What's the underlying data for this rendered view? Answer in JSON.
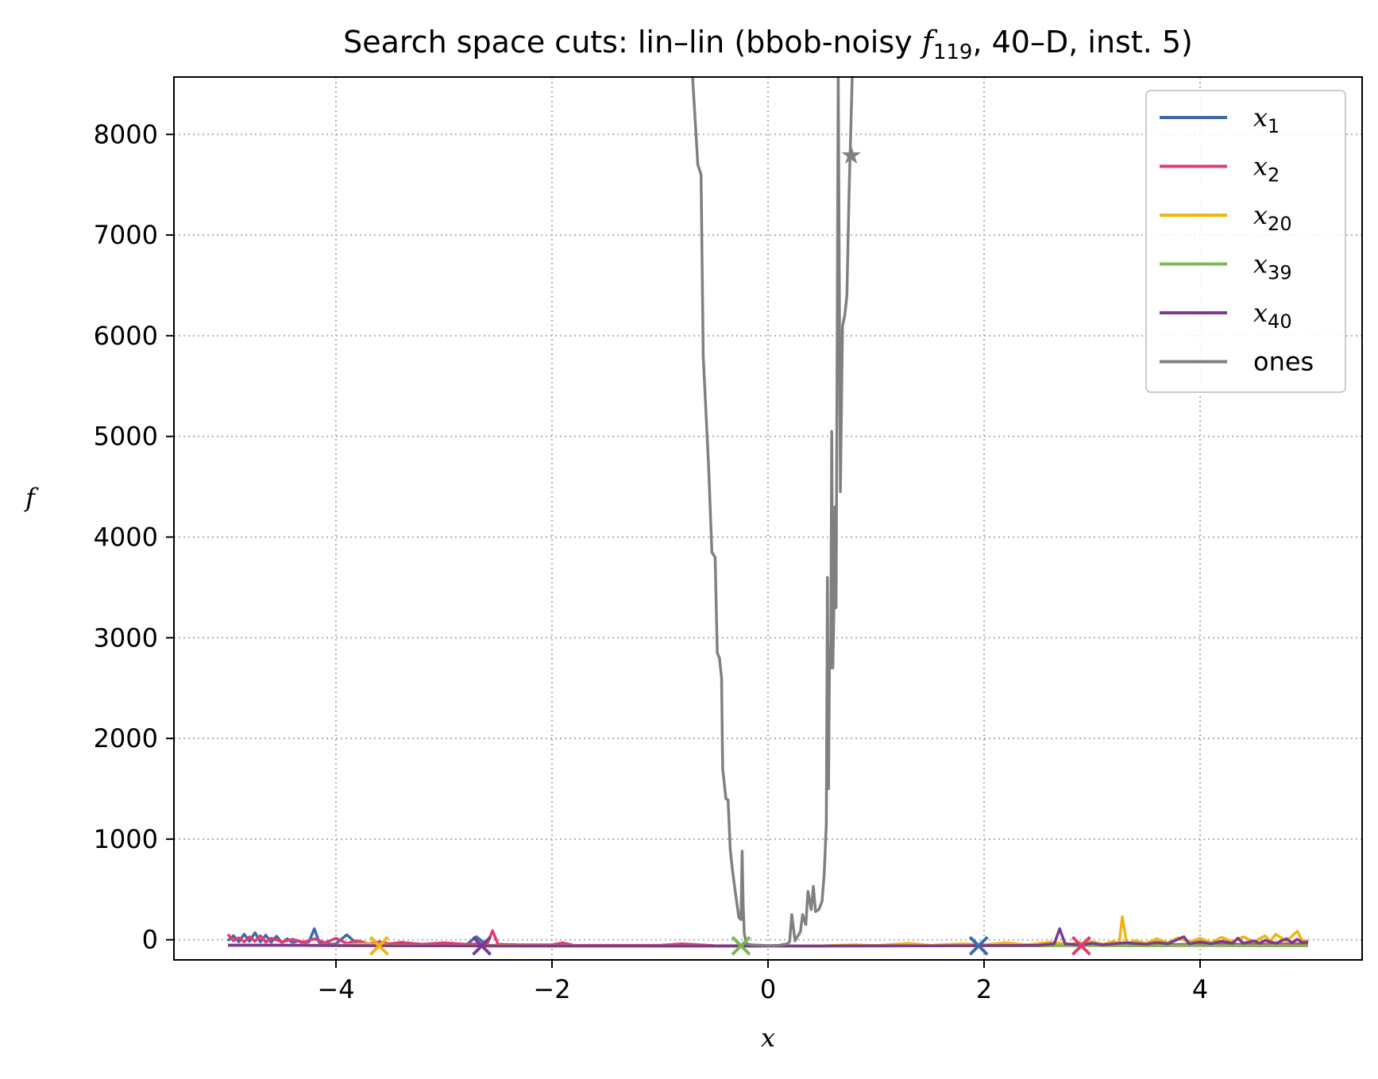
{
  "chart_data": {
    "type": "line",
    "title": {
      "prefix": "Search space cuts: lin–lin (bbob-noisy ",
      "f_symbol": "f",
      "f_sub": "119",
      "suffix": ", 40–D, inst. 5)"
    },
    "xlabel": "x",
    "ylabel": "f",
    "xlim": [
      -5.5,
      5.5
    ],
    "ylim": [
      -200,
      8570
    ],
    "xticks": [
      -4,
      -2,
      0,
      2,
      4
    ],
    "xtick_labels": [
      "−4",
      "−2",
      "0",
      "2",
      "4"
    ],
    "yticks": [
      0,
      1000,
      2000,
      3000,
      4000,
      5000,
      6000,
      7000,
      8000
    ],
    "ytick_labels": [
      "0",
      "1000",
      "2000",
      "3000",
      "4000",
      "5000",
      "6000",
      "7000",
      "8000"
    ],
    "grid": true,
    "legend_position": "upper right",
    "series": [
      {
        "name": "x",
        "sub": "1",
        "color": "#3f6aaa",
        "points": [
          [
            -5.0,
            -10
          ],
          [
            -4.95,
            40
          ],
          [
            -4.9,
            -20
          ],
          [
            -4.85,
            55
          ],
          [
            -4.8,
            -15
          ],
          [
            -4.75,
            70
          ],
          [
            -4.7,
            -20
          ],
          [
            -4.65,
            45
          ],
          [
            -4.6,
            -25
          ],
          [
            -4.55,
            35
          ],
          [
            -4.5,
            -30
          ],
          [
            -4.45,
            10
          ],
          [
            -4.4,
            -30
          ],
          [
            -4.35,
            -10
          ],
          [
            -4.3,
            -35
          ],
          [
            -4.25,
            -20
          ],
          [
            -4.2,
            110
          ],
          [
            -4.15,
            -40
          ],
          [
            -4.1,
            -30
          ],
          [
            -4.05,
            -45
          ],
          [
            -4.0,
            -40
          ],
          [
            -3.9,
            50
          ],
          [
            -3.8,
            -45
          ],
          [
            -3.6,
            -50
          ],
          [
            -3.4,
            -45
          ],
          [
            -3.2,
            -55
          ],
          [
            -3.0,
            -50
          ],
          [
            -2.8,
            -55
          ],
          [
            -2.7,
            30
          ],
          [
            -2.6,
            -55
          ],
          [
            -2.4,
            -55
          ],
          [
            -2.0,
            -60
          ],
          [
            -1.5,
            -60
          ],
          [
            -1.0,
            -60
          ],
          [
            -0.5,
            -62
          ],
          [
            0.0,
            -62
          ],
          [
            0.5,
            -62
          ],
          [
            1.0,
            -60
          ],
          [
            1.5,
            -60
          ],
          [
            2.0,
            -58
          ],
          [
            2.5,
            -55
          ],
          [
            3.0,
            -50
          ],
          [
            3.5,
            -50
          ],
          [
            4.0,
            -45
          ],
          [
            4.5,
            -45
          ],
          [
            5.0,
            -40
          ]
        ],
        "optimum": [
          1.95,
          -60
        ]
      },
      {
        "name": "x",
        "sub": "2",
        "color": "#e03c70",
        "points": [
          [
            -5.0,
            55
          ],
          [
            -4.95,
            -10
          ],
          [
            -4.9,
            20
          ],
          [
            -4.85,
            -20
          ],
          [
            -4.8,
            30
          ],
          [
            -4.75,
            -15
          ],
          [
            -4.7,
            40
          ],
          [
            -4.65,
            -25
          ],
          [
            -4.6,
            15
          ],
          [
            -4.5,
            -20
          ],
          [
            -4.4,
            5
          ],
          [
            -4.3,
            -25
          ],
          [
            -4.2,
            10
          ],
          [
            -4.1,
            -30
          ],
          [
            -4.0,
            15
          ],
          [
            -3.9,
            -35
          ],
          [
            -3.8,
            -10
          ],
          [
            -3.7,
            -40
          ],
          [
            -3.6,
            -20
          ],
          [
            -3.5,
            -40
          ],
          [
            -3.4,
            -25
          ],
          [
            -3.2,
            -45
          ],
          [
            -3.0,
            -30
          ],
          [
            -2.8,
            -45
          ],
          [
            -2.6,
            -40
          ],
          [
            -2.55,
            90
          ],
          [
            -2.5,
            -45
          ],
          [
            -2.3,
            -50
          ],
          [
            -2.0,
            -50
          ],
          [
            -1.9,
            -30
          ],
          [
            -1.8,
            -55
          ],
          [
            -1.5,
            -55
          ],
          [
            -1.0,
            -55
          ],
          [
            -0.8,
            -40
          ],
          [
            -0.5,
            -58
          ],
          [
            0.0,
            -60
          ],
          [
            0.5,
            -60
          ],
          [
            1.0,
            -58
          ],
          [
            1.5,
            -58
          ],
          [
            2.0,
            -56
          ],
          [
            2.5,
            -55
          ],
          [
            3.0,
            -52
          ],
          [
            3.5,
            -50
          ],
          [
            4.0,
            -48
          ],
          [
            4.5,
            -45
          ],
          [
            5.0,
            -45
          ]
        ],
        "optimum": [
          2.9,
          -60
        ]
      },
      {
        "name": "x",
        "sub": "20",
        "color": "#f0b512",
        "points": [
          [
            -5.0,
            -50
          ],
          [
            -4.5,
            -50
          ],
          [
            -4.0,
            -55
          ],
          [
            -3.7,
            -40
          ],
          [
            -3.5,
            -55
          ],
          [
            -3.0,
            -58
          ],
          [
            -2.5,
            -58
          ],
          [
            -2.0,
            -60
          ],
          [
            -1.5,
            -60
          ],
          [
            -1.0,
            -62
          ],
          [
            -0.5,
            -62
          ],
          [
            0.0,
            -62
          ],
          [
            0.5,
            -60
          ],
          [
            0.8,
            -50
          ],
          [
            1.0,
            -58
          ],
          [
            1.3,
            -35
          ],
          [
            1.5,
            -55
          ],
          [
            1.8,
            -40
          ],
          [
            2.0,
            -50
          ],
          [
            2.2,
            -30
          ],
          [
            2.4,
            -50
          ],
          [
            2.6,
            -25
          ],
          [
            2.8,
            -45
          ],
          [
            3.0,
            -20
          ],
          [
            3.1,
            -45
          ],
          [
            3.2,
            -15
          ],
          [
            3.25,
            -40
          ],
          [
            3.28,
            230
          ],
          [
            3.32,
            -35
          ],
          [
            3.4,
            -10
          ],
          [
            3.5,
            -35
          ],
          [
            3.6,
            10
          ],
          [
            3.7,
            -30
          ],
          [
            3.8,
            20
          ],
          [
            3.9,
            -25
          ],
          [
            4.0,
            15
          ],
          [
            4.1,
            -30
          ],
          [
            4.2,
            25
          ],
          [
            4.3,
            -20
          ],
          [
            4.4,
            30
          ],
          [
            4.5,
            -20
          ],
          [
            4.6,
            40
          ],
          [
            4.65,
            -15
          ],
          [
            4.7,
            55
          ],
          [
            4.8,
            -15
          ],
          [
            4.9,
            85
          ],
          [
            4.95,
            -20
          ],
          [
            5.0,
            -5
          ]
        ],
        "optimum": [
          -3.6,
          -60
        ]
      },
      {
        "name": "x",
        "sub": "39",
        "color": "#7bb657",
        "points": [
          [
            -5.0,
            -55
          ],
          [
            -4.5,
            -55
          ],
          [
            -4.0,
            -58
          ],
          [
            -3.5,
            -58
          ],
          [
            -3.0,
            -60
          ],
          [
            -2.5,
            -60
          ],
          [
            -2.0,
            -62
          ],
          [
            -1.5,
            -62
          ],
          [
            -1.0,
            -62
          ],
          [
            -0.5,
            -62
          ],
          [
            0.0,
            -62
          ],
          [
            0.5,
            -62
          ],
          [
            1.0,
            -62
          ],
          [
            1.5,
            -60
          ],
          [
            2.0,
            -60
          ],
          [
            2.5,
            -60
          ],
          [
            3.0,
            -58
          ],
          [
            3.5,
            -60
          ],
          [
            4.0,
            -58
          ],
          [
            4.5,
            -60
          ],
          [
            5.0,
            -60
          ]
        ],
        "optimum": [
          -0.25,
          -60
        ]
      },
      {
        "name": "x",
        "sub": "40",
        "color": "#7b3a8f",
        "points": [
          [
            -5.0,
            -55
          ],
          [
            -4.5,
            -55
          ],
          [
            -4.0,
            -58
          ],
          [
            -3.5,
            -60
          ],
          [
            -3.0,
            -60
          ],
          [
            -2.5,
            -62
          ],
          [
            -2.0,
            -62
          ],
          [
            -1.5,
            -62
          ],
          [
            -1.0,
            -62
          ],
          [
            -0.5,
            -62
          ],
          [
            0.0,
            -62
          ],
          [
            0.5,
            -62
          ],
          [
            1.0,
            -60
          ],
          [
            1.5,
            -60
          ],
          [
            2.0,
            -58
          ],
          [
            2.5,
            -55
          ],
          [
            2.65,
            -40
          ],
          [
            2.7,
            110
          ],
          [
            2.75,
            -40
          ],
          [
            2.9,
            -50
          ],
          [
            3.0,
            -35
          ],
          [
            3.1,
            -50
          ],
          [
            3.3,
            -30
          ],
          [
            3.5,
            -45
          ],
          [
            3.6,
            -25
          ],
          [
            3.7,
            -40
          ],
          [
            3.85,
            30
          ],
          [
            3.9,
            -40
          ],
          [
            4.0,
            -20
          ],
          [
            4.1,
            -40
          ],
          [
            4.2,
            -15
          ],
          [
            4.3,
            -35
          ],
          [
            4.35,
            15
          ],
          [
            4.4,
            -35
          ],
          [
            4.5,
            -10
          ],
          [
            4.55,
            -35
          ],
          [
            4.6,
            -5
          ],
          [
            4.7,
            -35
          ],
          [
            4.8,
            10
          ],
          [
            4.85,
            -30
          ],
          [
            4.9,
            5
          ],
          [
            4.95,
            -30
          ],
          [
            5.0,
            -20
          ]
        ],
        "optimum": [
          -2.65,
          -60
        ]
      },
      {
        "name": "ones",
        "sub": "",
        "color": "#808080",
        "points": [
          [
            -0.7,
            8600
          ],
          [
            -0.65,
            7700
          ],
          [
            -0.62,
            7600
          ],
          [
            -0.6,
            5800
          ],
          [
            -0.55,
            4700
          ],
          [
            -0.52,
            3850
          ],
          [
            -0.49,
            3800
          ],
          [
            -0.47,
            2850
          ],
          [
            -0.45,
            2800
          ],
          [
            -0.43,
            2600
          ],
          [
            -0.42,
            1700
          ],
          [
            -0.39,
            1400
          ],
          [
            -0.37,
            1390
          ],
          [
            -0.35,
            900
          ],
          [
            -0.33,
            700
          ],
          [
            -0.3,
            450
          ],
          [
            -0.28,
            300
          ],
          [
            -0.27,
            220
          ],
          [
            -0.25,
            200
          ],
          [
            -0.24,
            880
          ],
          [
            -0.23,
            350
          ],
          [
            -0.22,
            60
          ],
          [
            -0.2,
            -40
          ],
          [
            -0.15,
            -50
          ],
          [
            -0.05,
            -55
          ],
          [
            0.0,
            -58
          ],
          [
            0.1,
            -55
          ],
          [
            0.18,
            -40
          ],
          [
            0.2,
            -20
          ],
          [
            0.22,
            250
          ],
          [
            0.25,
            -10
          ],
          [
            0.3,
            80
          ],
          [
            0.32,
            250
          ],
          [
            0.35,
            150
          ],
          [
            0.37,
            480
          ],
          [
            0.4,
            300
          ],
          [
            0.42,
            530
          ],
          [
            0.44,
            280
          ],
          [
            0.47,
            300
          ],
          [
            0.5,
            380
          ],
          [
            0.52,
            650
          ],
          [
            0.54,
            1150
          ],
          [
            0.55,
            3600
          ],
          [
            0.56,
            1500
          ],
          [
            0.57,
            2900
          ],
          [
            0.58,
            2700
          ],
          [
            0.59,
            5050
          ],
          [
            0.6,
            2700
          ],
          [
            0.61,
            3300
          ],
          [
            0.62,
            4300
          ],
          [
            0.63,
            3300
          ],
          [
            0.65,
            8600
          ],
          [
            0.67,
            4450
          ],
          [
            0.69,
            6100
          ],
          [
            0.71,
            6200
          ],
          [
            0.73,
            6400
          ],
          [
            0.75,
            7400
          ],
          [
            0.78,
            8600
          ]
        ],
        "marker": [
          0.77,
          7790
        ]
      }
    ]
  }
}
